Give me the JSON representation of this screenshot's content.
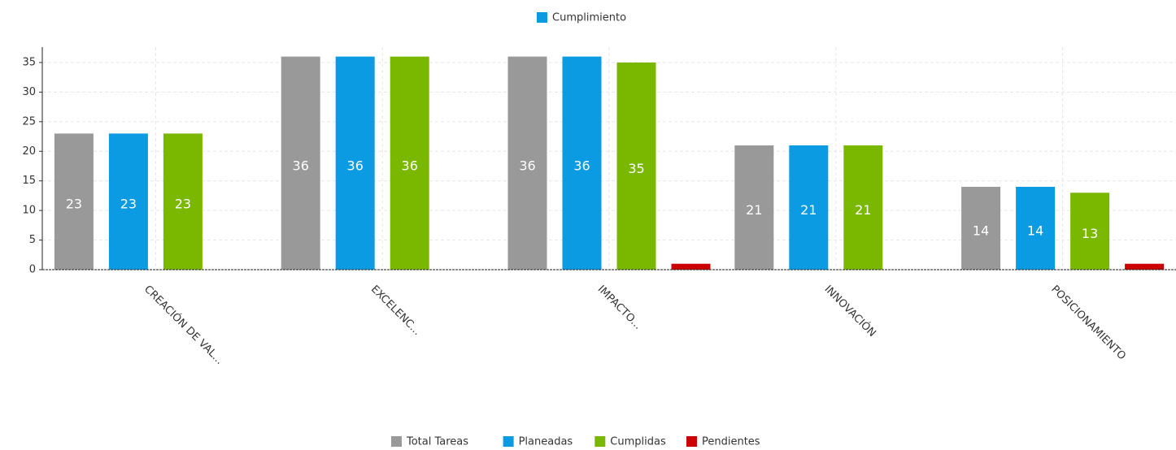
{
  "chart_data": {
    "type": "bar",
    "title": "Cumplimiento",
    "title_color": "#0a9be3",
    "categories": [
      "CREACIÓN DE VAL...",
      "EXCELENC...",
      "IMPACTO...",
      "INNOVACIÓN",
      "POSICIONAMIENTO"
    ],
    "series": [
      {
        "name": "Total Tareas",
        "color": "#999999",
        "values": [
          23,
          36,
          36,
          21,
          14
        ]
      },
      {
        "name": "Planeadas",
        "color": "#0a9be3",
        "values": [
          23,
          36,
          36,
          21,
          14
        ]
      },
      {
        "name": "Cumplidas",
        "color": "#7ab800",
        "values": [
          23,
          36,
          35,
          21,
          13
        ]
      },
      {
        "name": "Pendientes",
        "color": "#cc0000",
        "values": [
          0,
          0,
          1,
          0,
          1
        ]
      }
    ],
    "ylim": [
      0,
      37.6
    ],
    "yticks": [
      0,
      5,
      10,
      15,
      20,
      25,
      30,
      35
    ],
    "grid": true,
    "legend": "bottom"
  }
}
